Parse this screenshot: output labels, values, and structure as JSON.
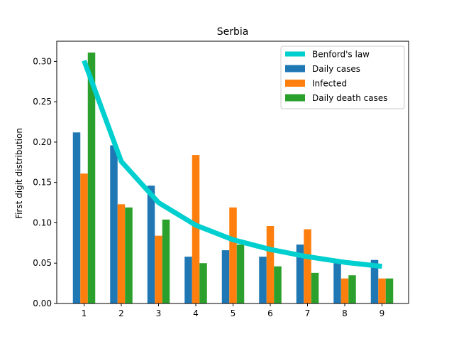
{
  "chart_data": {
    "type": "bar",
    "title": "Serbia",
    "xlabel": "",
    "ylabel": "First digit distribution",
    "categories": [
      "1",
      "2",
      "3",
      "4",
      "5",
      "6",
      "7",
      "8",
      "9"
    ],
    "ylim": [
      0,
      0.325
    ],
    "yticks": [
      "0.00",
      "0.05",
      "0.10",
      "0.15",
      "0.20",
      "0.25",
      "0.30"
    ],
    "series": [
      {
        "name": "Daily cases",
        "type": "bar",
        "color": "#1f77b4",
        "values": [
          0.212,
          0.196,
          0.146,
          0.058,
          0.066,
          0.058,
          0.073,
          0.05,
          0.054
        ]
      },
      {
        "name": "Infected",
        "type": "bar",
        "color": "#ff7f0e",
        "values": [
          0.161,
          0.123,
          0.084,
          0.184,
          0.119,
          0.096,
          0.092,
          0.031,
          0.031
        ]
      },
      {
        "name": "Daily death cases",
        "type": "bar",
        "color": "#2ca02c",
        "values": [
          0.311,
          0.119,
          0.104,
          0.05,
          0.073,
          0.046,
          0.038,
          0.035,
          0.031
        ]
      }
    ],
    "line": {
      "name": "Benford's law",
      "type": "line",
      "color": "#00cfcf",
      "values": [
        0.301,
        0.176,
        0.125,
        0.097,
        0.079,
        0.067,
        0.058,
        0.051,
        0.046
      ]
    },
    "legend": "top-right",
    "grid": false
  }
}
